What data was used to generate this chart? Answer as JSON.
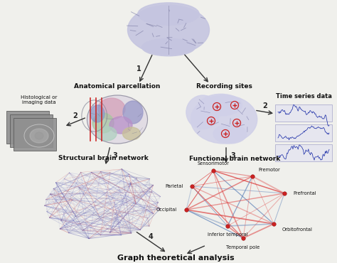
{
  "bg_color": "#f0f0ec",
  "labels": {
    "anatomical": "Anatomical parcellation",
    "recording": "Recording sites",
    "histological": "Histological or\nimaging data",
    "timeseries": "Time series data",
    "structural": "Structural brain network",
    "functional": "Functional brain network",
    "graph": "Graph theoretical analysis"
  },
  "brain_color_top": "#c5c5e0",
  "brain_color_parcellated": [
    "#d4a0b8",
    "#9898c8",
    "#a8c8a0",
    "#b890c8",
    "#b0d0c0",
    "#c8c098",
    "#8898c8",
    "#d090a8"
  ],
  "recording_brain_color": "#d0d0e8",
  "structural_colors": [
    "#5555aa",
    "#6666bb",
    "#7777cc",
    "#9999bb",
    "#cc4444"
  ],
  "functional_edge_red": "#dd4444",
  "functional_edge_blue": "#6688bb",
  "node_color": "#cc2222",
  "arrow_color": "#333333",
  "ts_box_color": "#e5e5f0",
  "ts_line_color": "#2233aa",
  "mri_color": "#888888"
}
